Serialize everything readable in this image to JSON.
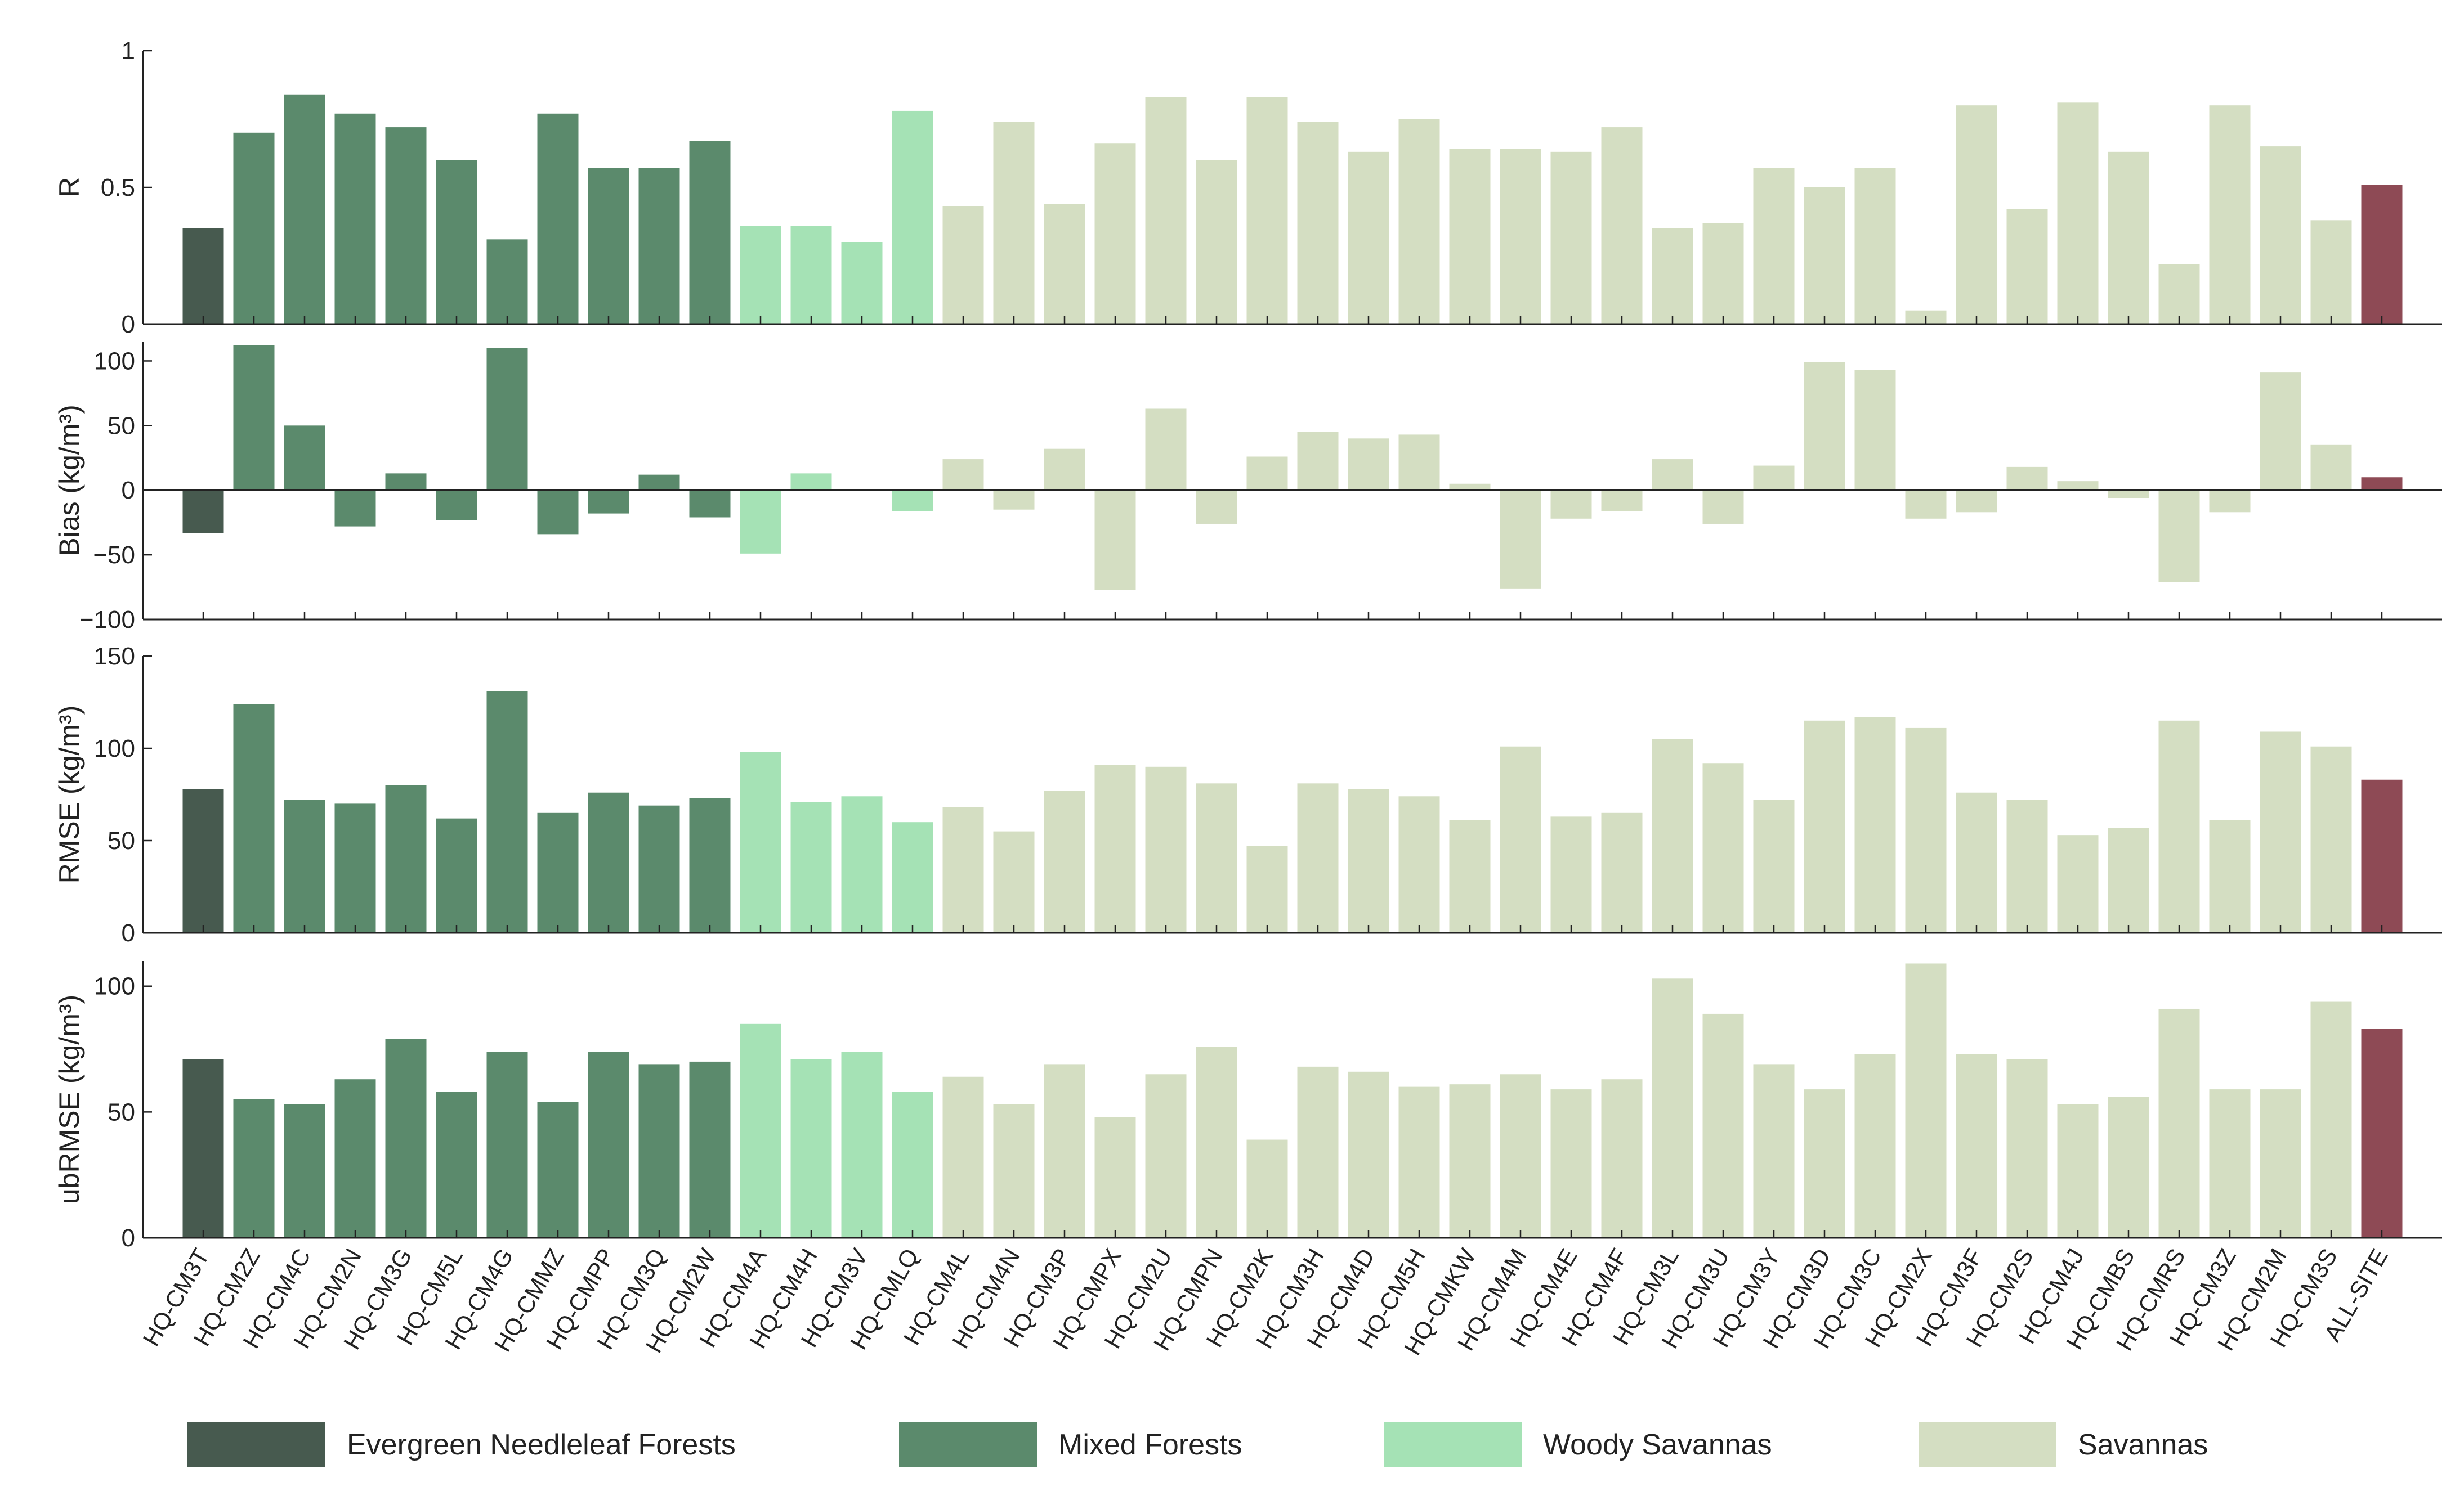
{
  "chart_data": [
    {
      "type": "bar",
      "ylabel": "R",
      "ylim": [
        0,
        1
      ],
      "yticks": [
        0,
        0.5,
        1
      ],
      "ytick_labels": [
        "0",
        "0.5",
        "1"
      ],
      "values": [
        0.35,
        0.7,
        0.84,
        0.77,
        0.72,
        0.6,
        0.31,
        0.77,
        0.57,
        0.57,
        0.67,
        0.36,
        0.36,
        0.3,
        0.78,
        0.43,
        0.74,
        0.44,
        0.66,
        0.83,
        0.6,
        0.83,
        0.74,
        0.63,
        0.75,
        0.64,
        0.64,
        0.63,
        0.72,
        0.35,
        0.37,
        0.57,
        0.5,
        0.57,
        0.05,
        0.8,
        0.42,
        0.81,
        0.63,
        0.22,
        0.8,
        0.65,
        0.38,
        0.51
      ]
    },
    {
      "type": "bar",
      "ylabel": "Bias (kg/m³)",
      "ylim": [
        -100,
        115
      ],
      "yticks": [
        -100,
        -50,
        0,
        50,
        100
      ],
      "ytick_labels": [
        "−100",
        "−50",
        "0",
        "50",
        "100"
      ],
      "values": [
        -33,
        112,
        50,
        -28,
        13,
        -23,
        110,
        -34,
        -18,
        12,
        -21,
        -49,
        13,
        0,
        -16,
        24,
        -15,
        32,
        -77,
        63,
        -26,
        26,
        45,
        40,
        43,
        5,
        -76,
        -22,
        -16,
        24,
        -26,
        19,
        99,
        93,
        -22,
        -17,
        18,
        7,
        -6,
        -71,
        -17,
        91,
        35,
        10
      ]
    },
    {
      "type": "bar",
      "ylabel": "RMSE (kg/m³)",
      "ylim": [
        0,
        150
      ],
      "yticks": [
        0,
        50,
        100,
        150
      ],
      "ytick_labels": [
        "0",
        "50",
        "100",
        "150"
      ],
      "values": [
        78,
        124,
        72,
        70,
        80,
        62,
        131,
        65,
        76,
        69,
        73,
        98,
        71,
        74,
        60,
        68,
        55,
        77,
        91,
        90,
        81,
        47,
        81,
        78,
        74,
        61,
        101,
        63,
        65,
        105,
        92,
        72,
        115,
        117,
        111,
        76,
        72,
        53,
        57,
        115,
        61,
        109,
        101,
        83
      ]
    },
    {
      "type": "bar",
      "ylabel": "ubRMSE (kg/m³)",
      "ylim": [
        0,
        110
      ],
      "yticks": [
        0,
        50,
        100
      ],
      "ytick_labels": [
        "0",
        "50",
        "100"
      ],
      "values": [
        71,
        55,
        53,
        63,
        79,
        58,
        74,
        54,
        74,
        69,
        70,
        85,
        71,
        74,
        58,
        64,
        53,
        69,
        48,
        65,
        76,
        39,
        68,
        66,
        60,
        61,
        65,
        59,
        63,
        103,
        89,
        69,
        59,
        73,
        109,
        73,
        71,
        53,
        56,
        91,
        59,
        59,
        94,
        83
      ]
    }
  ],
  "categories": [
    "HQ-CM3T",
    "HQ-CM2Z",
    "HQ-CM4C",
    "HQ-CM2N",
    "HQ-CM3G",
    "HQ-CM5L",
    "HQ-CM4G",
    "HQ-CMMZ",
    "HQ-CMPP",
    "HQ-CM3Q",
    "HQ-CM2W",
    "HQ-CM4A",
    "HQ-CM4H",
    "HQ-CM3V",
    "HQ-CMLQ",
    "HQ-CM4L",
    "HQ-CM4N",
    "HQ-CM3P",
    "HQ-CMPX",
    "HQ-CM2U",
    "HQ-CMPN",
    "HQ-CM2K",
    "HQ-CM3H",
    "HQ-CM4D",
    "HQ-CM5H",
    "HQ-CMKW",
    "HQ-CM4M",
    "HQ-CM4E",
    "HQ-CM4F",
    "HQ-CM3L",
    "HQ-CM3U",
    "HQ-CM3Y",
    "HQ-CM3D",
    "HQ-CM3C",
    "HQ-CM2X",
    "HQ-CM3F",
    "HQ-CM2S",
    "HQ-CM4J",
    "HQ-CMBS",
    "HQ-CMRS",
    "HQ-CM3Z",
    "HQ-CM2M",
    "HQ-CM3S",
    "ALL-SITE"
  ],
  "category_class": [
    0,
    1,
    1,
    1,
    1,
    1,
    1,
    1,
    1,
    1,
    1,
    2,
    2,
    2,
    2,
    3,
    3,
    3,
    3,
    3,
    3,
    3,
    3,
    3,
    3,
    3,
    3,
    3,
    3,
    3,
    3,
    3,
    3,
    3,
    3,
    3,
    3,
    3,
    3,
    3,
    3,
    3,
    3,
    4
  ],
  "legend": {
    "placement": "bottom",
    "entries": [
      {
        "label": "Evergreen Needleleaf Forests",
        "color": "#475a4f"
      },
      {
        "label": "Mixed Forests",
        "color": "#5b8a6c"
      },
      {
        "label": "Woody Savannas",
        "color": "#a5e2b5"
      },
      {
        "label": "Savannas",
        "color": "#d4dec2"
      }
    ]
  },
  "all_site_color": "#8e4a55",
  "grid": false
}
